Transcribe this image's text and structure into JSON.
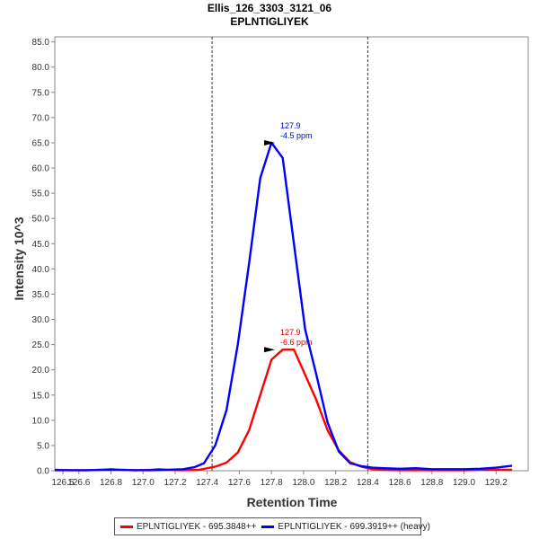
{
  "chart_data": {
    "type": "line",
    "title": "Ellis_126_3303_3121_06",
    "subtitle": "EPLNTIGLIYEK",
    "xlabel": "Retention Time",
    "ylabel": "Intensity 10^3",
    "xlim": [
      126.45,
      129.4
    ],
    "ylim": [
      0,
      86
    ],
    "x_ticks": [
      "126.5",
      "126.6",
      "126.8",
      "127.0",
      "127.2",
      "127.4",
      "127.6",
      "127.8",
      "128.0",
      "128.2",
      "128.4",
      "128.6",
      "128.8",
      "129.0",
      "129.2"
    ],
    "x_tick_values": [
      126.5,
      126.6,
      126.8,
      127.0,
      127.2,
      127.4,
      127.6,
      127.8,
      128.0,
      128.2,
      128.4,
      128.6,
      128.8,
      129.0,
      129.2
    ],
    "y_ticks": [
      "0.0",
      "5.0",
      "10.0",
      "15.0",
      "20.0",
      "25.0",
      "30.0",
      "35.0",
      "40.0",
      "45.0",
      "50.0",
      "55.0",
      "60.0",
      "65.0",
      "70.0",
      "75.0",
      "80.0",
      "85.0"
    ],
    "y_tick_values": [
      0,
      5,
      10,
      15,
      20,
      25,
      30,
      35,
      40,
      45,
      50,
      55,
      60,
      65,
      70,
      75,
      80,
      85
    ],
    "boundaries": [
      127.43,
      128.4
    ],
    "series": [
      {
        "name": "EPLNTIGLIYEK - 695.3848++",
        "color": "#ff0000",
        "x": [
          126.45,
          126.55,
          126.65,
          126.75,
          126.8,
          126.85,
          126.95,
          127.05,
          127.1,
          127.15,
          127.25,
          127.35,
          127.45,
          127.52,
          127.59,
          127.66,
          127.73,
          127.8,
          127.87,
          127.94,
          128.01,
          128.08,
          128.15,
          128.22,
          128.29,
          128.36,
          128.43,
          128.5,
          128.6,
          128.7,
          128.8,
          128.9,
          129.0,
          129.1,
          129.2,
          129.3
        ],
        "y": [
          0.2,
          0.1,
          0.1,
          0.2,
          0.3,
          0.2,
          0.1,
          0.2,
          0.3,
          0.2,
          0.1,
          0.2,
          0.8,
          1.6,
          3.6,
          8,
          15,
          22,
          24,
          24,
          19,
          14,
          8,
          4,
          1.7,
          0.8,
          0.3,
          0.2,
          0.1,
          0.1,
          0.1,
          0.1,
          0.1,
          0.2,
          0.2,
          0.2
        ]
      },
      {
        "name": "EPLNTIGLIYEK - 699.3919++ (heavy)",
        "color": "#0000ff",
        "x": [
          126.45,
          126.55,
          126.65,
          126.75,
          126.85,
          126.95,
          127.05,
          127.15,
          127.25,
          127.32,
          127.38,
          127.45,
          127.52,
          127.59,
          127.66,
          127.73,
          127.8,
          127.87,
          127.94,
          128.01,
          128.08,
          128.15,
          128.22,
          128.29,
          128.36,
          128.43,
          128.5,
          128.6,
          128.7,
          128.8,
          128.9,
          129.0,
          129.1,
          129.2,
          129.3
        ],
        "y": [
          0.1,
          0.1,
          0.1,
          0.2,
          0.2,
          0.1,
          0.1,
          0.2,
          0.3,
          0.7,
          1.5,
          5,
          12,
          25,
          41,
          58,
          65,
          62,
          45,
          28,
          19,
          9.5,
          3.8,
          1.5,
          0.9,
          0.6,
          0.5,
          0.4,
          0.5,
          0.3,
          0.3,
          0.3,
          0.4,
          0.6,
          1.0
        ]
      }
    ],
    "annotations": [
      {
        "rt": "127.9",
        "ppm": "-4.5 ppm",
        "x": 127.9,
        "y": 65,
        "color": "#0000cc"
      },
      {
        "rt": "127.9",
        "ppm": "-6.6 ppm",
        "x": 127.9,
        "y": 24,
        "color": "#cc0000"
      }
    ],
    "grid": false,
    "legend": "bottom"
  },
  "legend": {
    "items": [
      {
        "label": "EPLNTIGLIYEK - 695.3848++",
        "color": "#ff0000"
      },
      {
        "label": "EPLNTIGLIYEK - 699.3919++ (heavy)",
        "color": "#0000ff"
      }
    ]
  }
}
